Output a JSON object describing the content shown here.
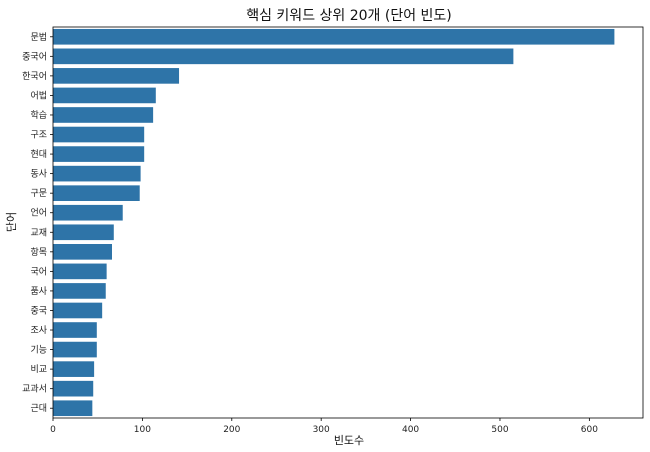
{
  "chart_data": {
    "type": "bar",
    "orientation": "horizontal",
    "title": "핵심 키워드 상위 20개 (단어 빈도)",
    "xlabel": "빈도수",
    "ylabel": "단어",
    "categories": [
      "문법",
      "중국어",
      "한국어",
      "어법",
      "학습",
      "구조",
      "현대",
      "동사",
      "구문",
      "언어",
      "교재",
      "항목",
      "국어",
      "품사",
      "중국",
      "조사",
      "기능",
      "비교",
      "교과서",
      "근대"
    ],
    "values": [
      628,
      515,
      141,
      115,
      112,
      102,
      102,
      98,
      97,
      78,
      68,
      66,
      60,
      59,
      55,
      49,
      49,
      46,
      45,
      44
    ],
    "xlim": [
      0,
      660
    ],
    "xticks": [
      0,
      100,
      200,
      300,
      400,
      500,
      600
    ],
    "bar_color": "#2e74a8",
    "grid": false,
    "legend": "none"
  }
}
